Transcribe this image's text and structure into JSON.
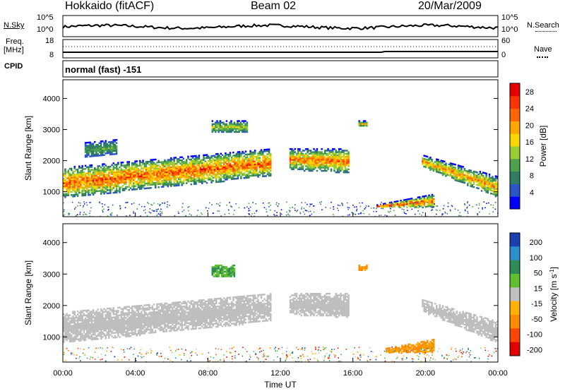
{
  "header": {
    "station": "Hokkaido (fitACF)",
    "beam": "Beam 02",
    "date": "20/Mar/2009"
  },
  "noise_panel": {
    "left_label": "N.Sky",
    "right_label": "N.Search",
    "left_ticks": [
      "10^5",
      "10^0"
    ],
    "right_ticks": [
      "10^5",
      "10^0"
    ]
  },
  "freq_panel": {
    "left_label_1": "Freq.",
    "left_label_2": "[MHz]",
    "left_ticks": [
      "18",
      "8"
    ],
    "right_label": "Nave",
    "right_ticks": [
      "60",
      "0"
    ],
    "cpid_label": "CPID"
  },
  "cpid_panel": {
    "text": "normal (fast) -151"
  },
  "colors": {
    "power_scale": [
      "#0000ff",
      "#2b56c8",
      "#2e7d60",
      "#4fa14f",
      "#9acd32",
      "#ffd700",
      "#ffa500",
      "#ff6600",
      "#ff3300",
      "#e60000"
    ],
    "velocity_scale": [
      "#1a3fb0",
      "#2b8fd0",
      "#2e8b57",
      "#5fbf2f",
      "#c0c0c0",
      "#ffb000",
      "#ff8c00",
      "#ff4500",
      "#e00000"
    ],
    "ground_scatter": "#bebebe"
  },
  "chart_data": [
    {
      "type": "heatmap",
      "title": "",
      "xlabel": "Time UT",
      "ylabel": "Slant Range [km]",
      "xlim": [
        "00:00",
        "24:00"
      ],
      "ylim": [
        200,
        4600
      ],
      "x_ticks": [
        "00:00",
        "04:00",
        "08:00",
        "12:00",
        "16:00",
        "20:00",
        "00:00"
      ],
      "y_ticks": [
        "1000",
        "2000",
        "3000",
        "4000"
      ],
      "colorbar": {
        "label": "Power [dB]",
        "ticks": [
          "4",
          "8",
          "12",
          "16",
          "20",
          "24",
          "28"
        ],
        "range": [
          0,
          30
        ]
      },
      "scatter_regions": [
        {
          "name": "main band",
          "t_start_h": 0.0,
          "t_end_h": 11.5,
          "range_low_km": [
            800,
            1500
          ],
          "range_high_km": [
            1800,
            2400
          ],
          "peak_power_db": 28
        },
        {
          "name": "early patch",
          "t_start_h": 1.2,
          "t_end_h": 3.0,
          "range_low_km": [
            2100,
            2200
          ],
          "range_high_km": [
            2600,
            2700
          ],
          "peak_power_db": 12
        },
        {
          "name": "morning patch",
          "t_start_h": 8.2,
          "t_end_h": 10.2,
          "range_low_km": [
            2900,
            2900
          ],
          "range_high_km": [
            3300,
            3300
          ],
          "peak_power_db": 16
        },
        {
          "name": "midday band",
          "t_start_h": 12.5,
          "t_end_h": 15.8,
          "range_low_km": [
            1700,
            1600
          ],
          "range_high_km": [
            2400,
            2400
          ],
          "peak_power_db": 26
        },
        {
          "name": "afternoon spot",
          "t_start_h": 16.3,
          "t_end_h": 16.8,
          "range_low_km": [
            3100,
            3100
          ],
          "range_high_km": [
            3300,
            3300
          ],
          "peak_power_db": 20
        },
        {
          "name": "evening wedge",
          "t_start_h": 17.3,
          "t_end_h": 20.5,
          "range_low_km": [
            500,
            500
          ],
          "range_high_km": [
            600,
            950
          ],
          "peak_power_db": 28
        },
        {
          "name": "late band",
          "t_start_h": 19.8,
          "t_end_h": 24.0,
          "range_low_km": [
            1800,
            800
          ],
          "range_high_km": [
            2200,
            1500
          ],
          "peak_power_db": 24
        }
      ]
    },
    {
      "type": "heatmap",
      "title": "",
      "xlabel": "Time UT",
      "ylabel": "Slant Range [km]",
      "xlim": [
        "00:00",
        "24:00"
      ],
      "ylim": [
        200,
        4600
      ],
      "x_ticks": [
        "00:00",
        "04:00",
        "08:00",
        "12:00",
        "16:00",
        "20:00",
        "00:00"
      ],
      "y_ticks": [
        "1000",
        "2000",
        "3000",
        "4000"
      ],
      "colorbar": {
        "label": "Velocity [m s⁻¹]",
        "label_main": "Velocity [m s",
        "label_exp": "-1",
        "label_close": "]",
        "ticks": [
          "200",
          "100",
          "50",
          "15",
          "-15",
          "-50",
          "-100",
          "-200"
        ],
        "range": [
          -250,
          250
        ]
      },
      "scatter_regions": [
        {
          "name": "main band (ground scatter)",
          "t_start_h": 0.0,
          "t_end_h": 11.5,
          "velocity_ms": 0
        },
        {
          "name": "midday band (ground scatter)",
          "t_start_h": 12.5,
          "t_end_h": 15.8,
          "velocity_ms": 0
        },
        {
          "name": "morning patch",
          "t_start_h": 8.2,
          "t_end_h": 9.5,
          "velocity_ms": 60
        },
        {
          "name": "afternoon spot",
          "t_start_h": 16.3,
          "t_end_h": 16.8,
          "velocity_ms": -80
        },
        {
          "name": "evening wedge",
          "t_start_h": 17.8,
          "t_end_h": 20.5,
          "velocity_ms": -70
        },
        {
          "name": "late band (ground scatter)",
          "t_start_h": 19.8,
          "t_end_h": 24.0,
          "velocity_ms": 0
        }
      ]
    }
  ]
}
